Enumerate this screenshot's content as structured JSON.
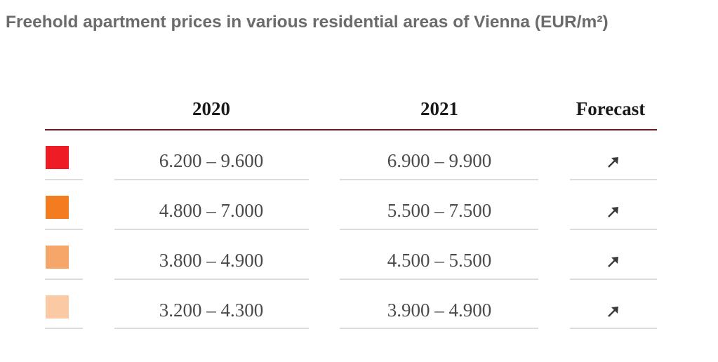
{
  "title": "Freehold apartment prices in various residential areas of Vienna (EUR/m²)",
  "chart_data": {
    "type": "table",
    "title": "Freehold apartment prices in various residential areas of Vienna (EUR/m²)",
    "columns": [
      "2020",
      "2021",
      "Forecast"
    ],
    "rows": [
      {
        "color": "#ee1c25",
        "y2020": "6.200 – 9.600",
        "y2021": "6.900 – 9.900",
        "forecast": "rising",
        "forecast_icon": "arrow-up-right-icon"
      },
      {
        "color": "#f47c20",
        "y2020": "4.800 – 7.000",
        "y2021": "5.500 – 7.500",
        "forecast": "rising",
        "forecast_icon": "arrow-up-right-icon"
      },
      {
        "color": "#f7a66a",
        "y2020": "3.800 – 4.900",
        "y2021": "4.500 – 5.500",
        "forecast": "rising",
        "forecast_icon": "arrow-up-right-icon"
      },
      {
        "color": "#fbc9a3",
        "y2020": "3.200 – 4.300",
        "y2021": "3.900 – 4.900",
        "forecast": "rising",
        "forecast_icon": "arrow-up-right-icon"
      }
    ],
    "header_rule_color": "#6e1a22"
  }
}
